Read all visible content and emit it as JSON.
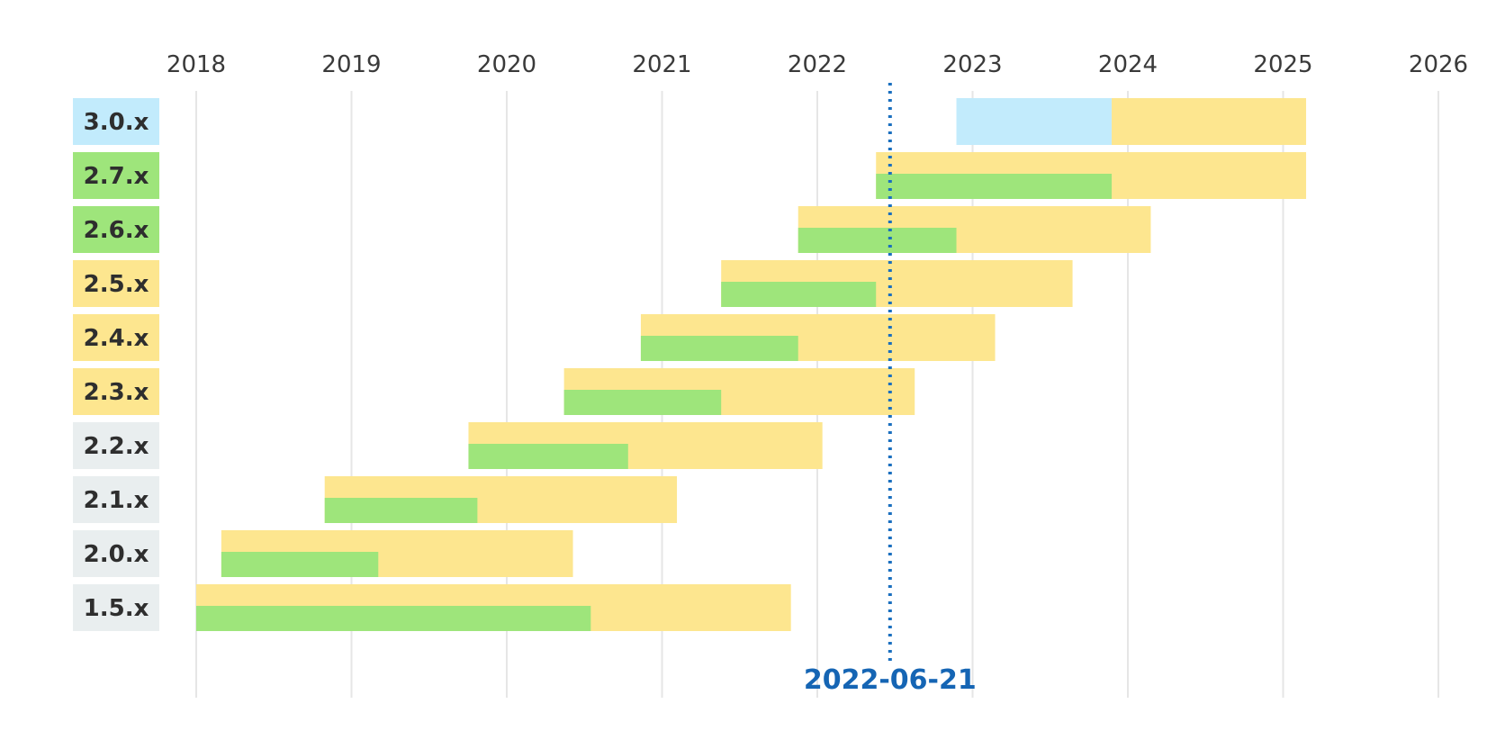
{
  "colors": {
    "active": "#9ee57b",
    "maintenance": "#fde68f",
    "upcoming": "#c2ebfc",
    "eol_label": "#e9eeef",
    "today": "#1565b4",
    "grid": "#e6e6e6"
  },
  "chart_data": {
    "type": "gantt",
    "title": "",
    "xlabel": "",
    "ylabel": "",
    "x_ticks": [
      "2018",
      "2019",
      "2020",
      "2021",
      "2022",
      "2023",
      "2024",
      "2025",
      "2026"
    ],
    "xlim": [
      "2018-01-01",
      "2026-01-01"
    ],
    "today": {
      "date": "2022-06-21",
      "label": "2022-06-21"
    },
    "versions": [
      {
        "label": "3.0.x",
        "status": "upcoming",
        "upcoming_start": "2022-11-24",
        "upcoming_end": "2023-11-24",
        "maintenance_end": "2025-02-24"
      },
      {
        "label": "2.7.x",
        "status": "active",
        "start": "2022-05-19",
        "active_end": "2023-11-24",
        "maintenance_end": "2025-02-24"
      },
      {
        "label": "2.6.x",
        "status": "active",
        "start": "2021-11-17",
        "active_end": "2022-11-24",
        "maintenance_end": "2024-02-24"
      },
      {
        "label": "2.5.x",
        "status": "maintenance",
        "start": "2021-05-20",
        "active_end": "2022-05-19",
        "maintenance_end": "2023-08-24"
      },
      {
        "label": "2.4.x",
        "status": "maintenance",
        "start": "2020-11-12",
        "active_end": "2021-11-17",
        "maintenance_end": "2023-02-23"
      },
      {
        "label": "2.3.x",
        "status": "maintenance",
        "start": "2020-05-15",
        "active_end": "2021-05-20",
        "maintenance_end": "2022-08-18"
      },
      {
        "label": "2.2.x",
        "status": "eol",
        "start": "2019-10-03",
        "active_end": "2020-10-13",
        "maintenance_end": "2022-01-13"
      },
      {
        "label": "2.1.x",
        "status": "eol",
        "start": "2018-10-30",
        "active_end": "2019-10-24",
        "maintenance_end": "2021-02-05"
      },
      {
        "label": "2.0.x",
        "status": "eol",
        "start": "2018-03-01",
        "active_end": "2019-03-05",
        "maintenance_end": "2020-06-05"
      },
      {
        "label": "1.5.x",
        "status": "eol",
        "start": "2018-01-01",
        "active_end": "2020-07-17",
        "maintenance_end": "2021-10-31"
      }
    ]
  }
}
